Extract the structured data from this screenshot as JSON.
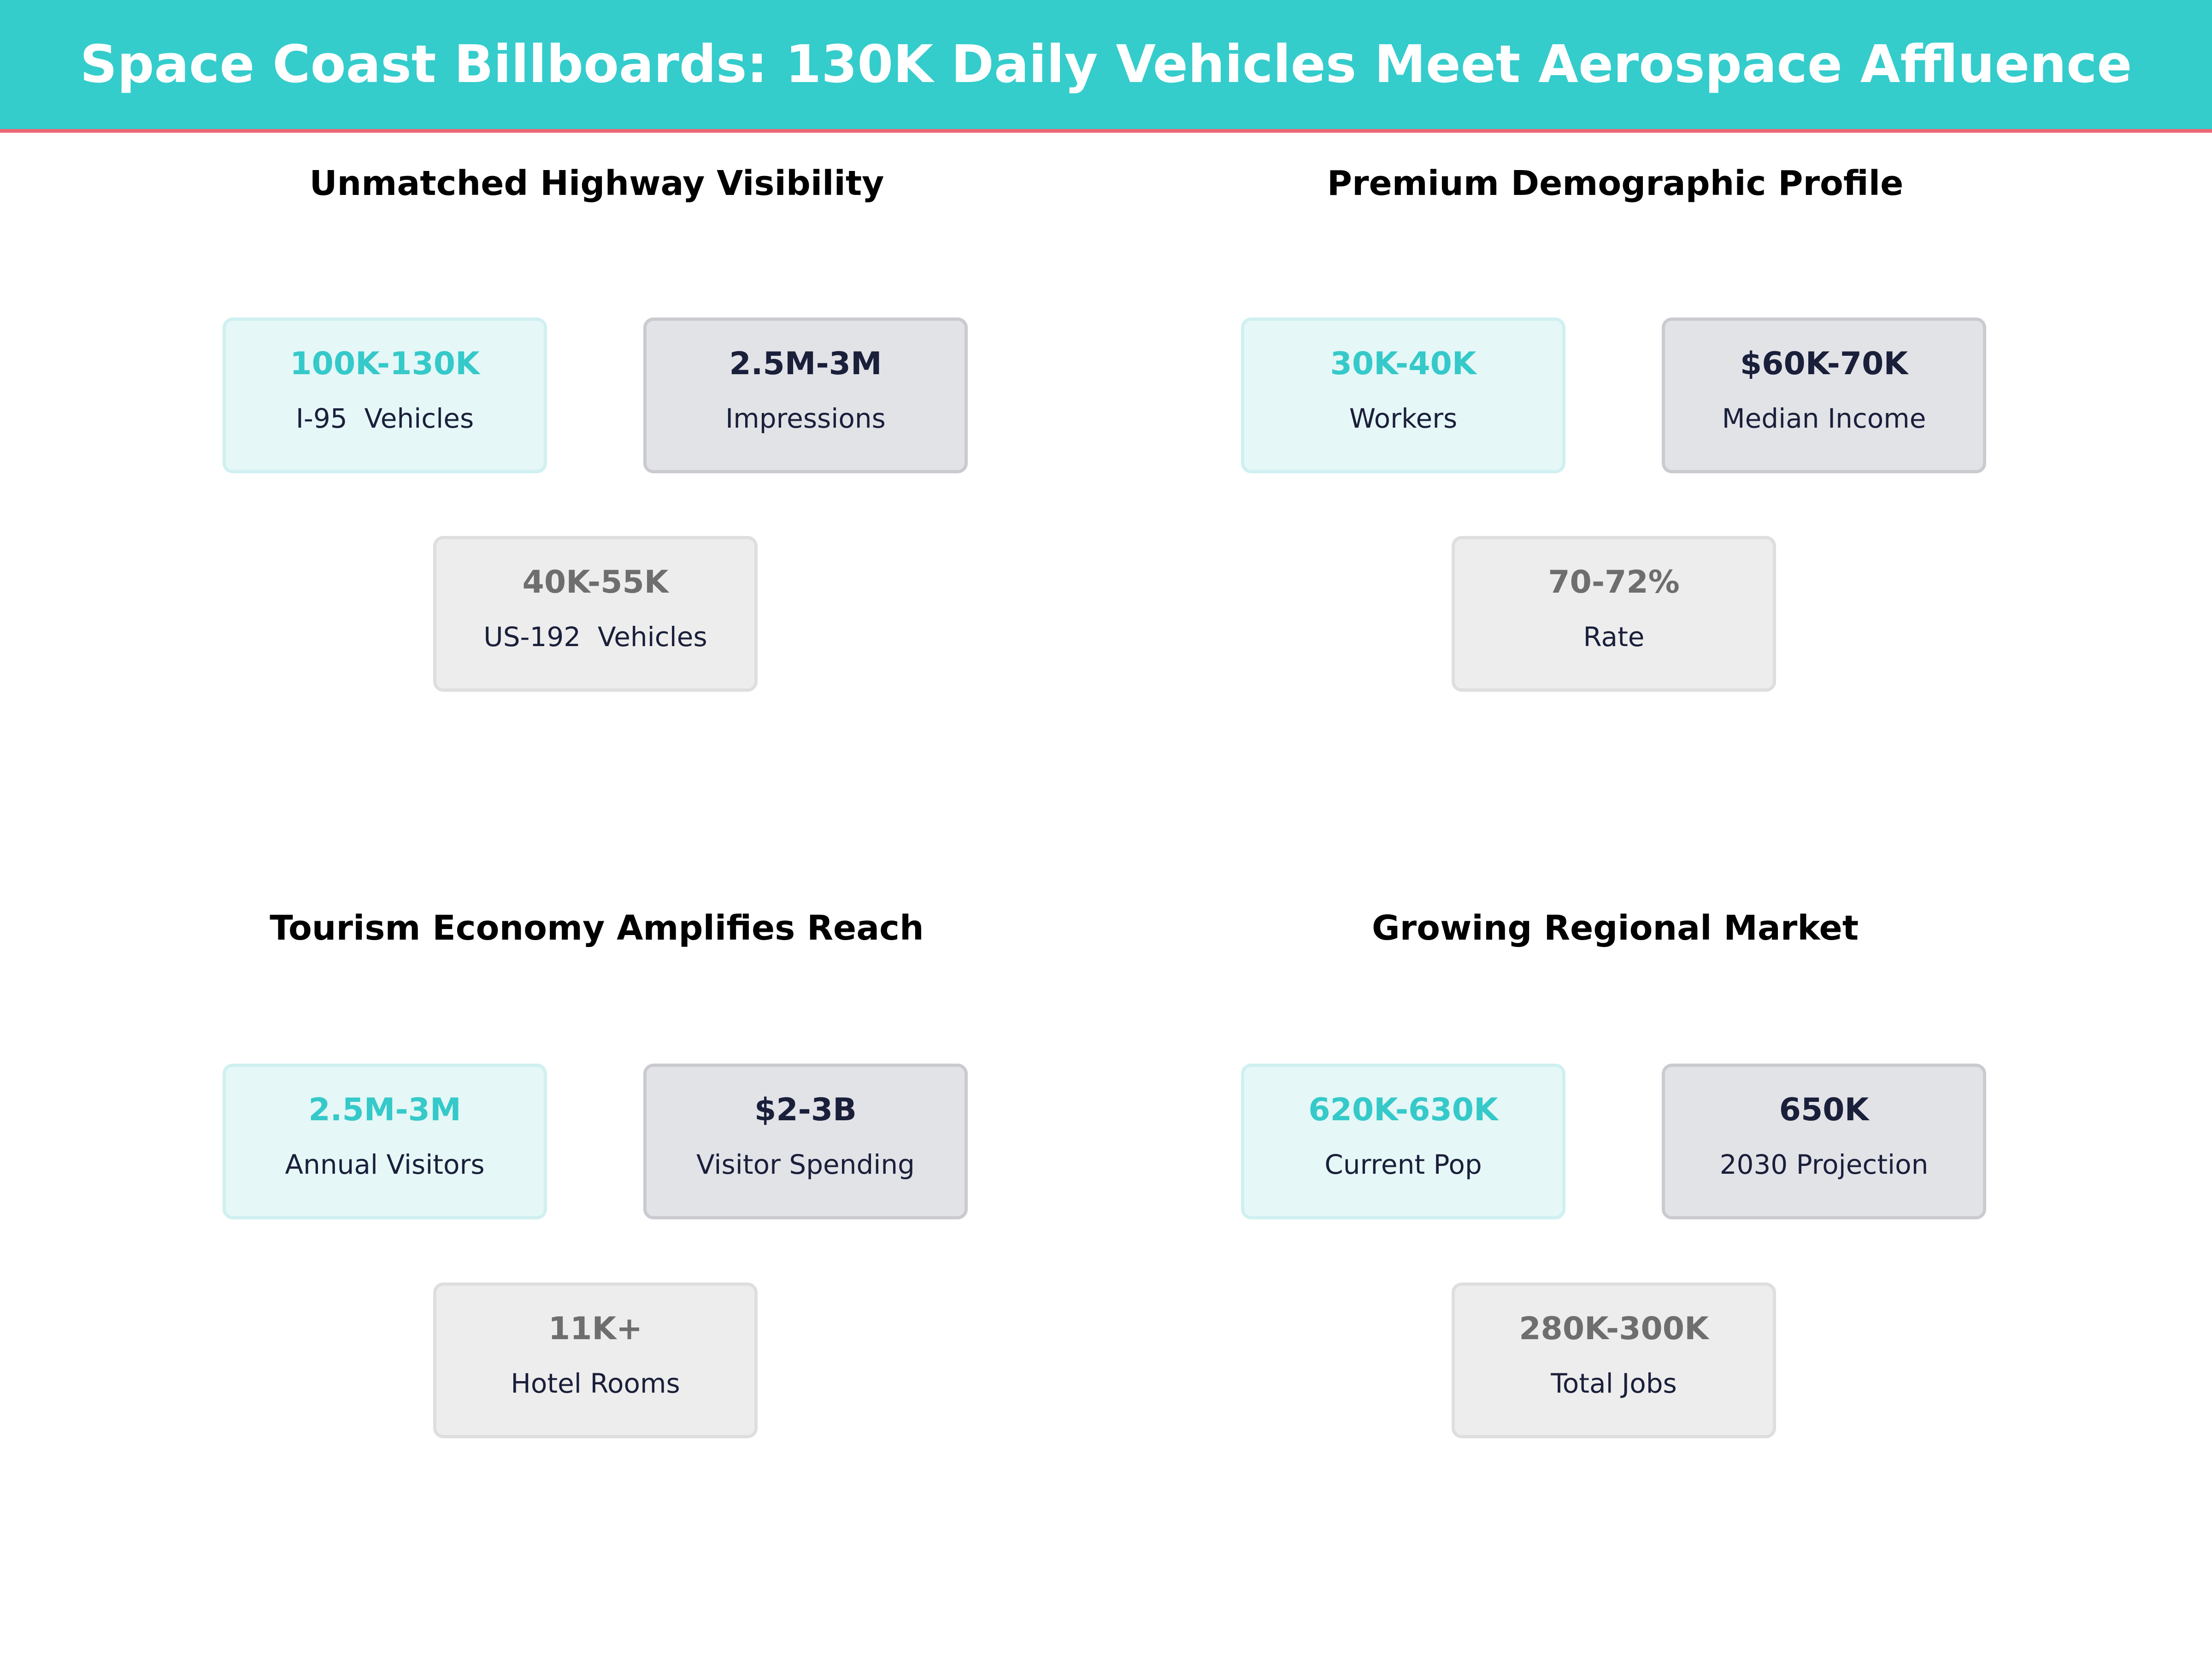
{
  "title": "Space Coast Billboards: 130K Daily Vehicles Meet Aerospace Affluence",
  "colors": {
    "header": "#35cccc",
    "accent_line": "#ee6677",
    "teal": "#35c9c9",
    "navy": "#1a1f3a",
    "gray": "#6e6e6e"
  },
  "panels": [
    {
      "title": "Unmatched Highway Visibility",
      "cards": [
        {
          "value": "100K-130K",
          "label": "I-95  Vehicles"
        },
        {
          "value": "2.5M-3M",
          "label": "Impressions"
        },
        {
          "value": "40K-55K",
          "label": "US-192  Vehicles"
        }
      ]
    },
    {
      "title": "Premium Demographic Profile",
      "cards": [
        {
          "value": "30K-40K",
          "label": "Workers"
        },
        {
          "value": "$60K-70K",
          "label": "Median Income"
        },
        {
          "value": "70-72%",
          "label": "Rate"
        }
      ]
    },
    {
      "title": "Tourism Economy Amplifies Reach",
      "cards": [
        {
          "value": "2.5M-3M",
          "label": "Annual Visitors"
        },
        {
          "value": "$2-3B",
          "label": "Visitor Spending"
        },
        {
          "value": "11K+",
          "label": "Hotel Rooms"
        }
      ]
    },
    {
      "title": "Growing Regional Market",
      "cards": [
        {
          "value": "620K-630K",
          "label": "Current Pop"
        },
        {
          "value": "650K",
          "label": "2030 Projection"
        },
        {
          "value": "280K-300K",
          "label": "Total Jobs"
        }
      ]
    }
  ]
}
